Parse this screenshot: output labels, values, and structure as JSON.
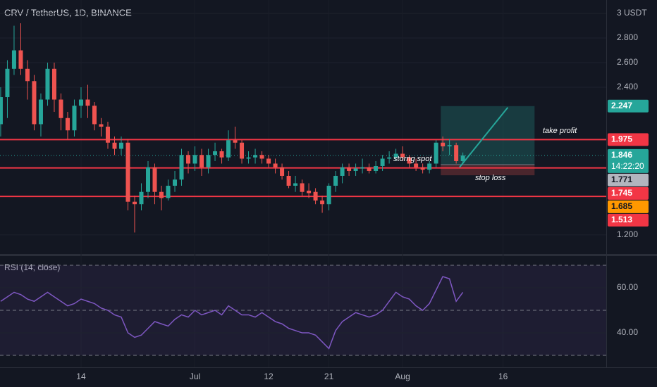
{
  "chart_data": {
    "type": "candlestick",
    "title": "CRV / TetherUS, 1D, BINANCE",
    "up_color": "#26a69a",
    "down_color": "#ef5350",
    "xlim": [
      -0.1,
      90.4
    ],
    "ylim": [
      1.051,
      3.109
    ],
    "yticks": [
      {
        "value": 3,
        "label": "3 USDT"
      },
      {
        "value": 2.8,
        "label": "2.800"
      },
      {
        "value": 2.6,
        "label": "2.600"
      },
      {
        "value": 2.4,
        "label": "2.400"
      },
      {
        "value": 1.2,
        "label": "1.200"
      }
    ],
    "xticks": [
      {
        "value": 12,
        "label": "14"
      },
      {
        "value": 29,
        "label": "Jul"
      },
      {
        "value": 40,
        "label": "12"
      },
      {
        "value": 49,
        "label": "21"
      },
      {
        "value": 60,
        "label": "Aug"
      },
      {
        "value": 75,
        "label": "16"
      }
    ],
    "ohlc": [
      [
        2.1,
        2.4,
        2.0,
        2.32
      ],
      [
        2.32,
        2.62,
        2.15,
        2.55
      ],
      [
        2.55,
        2.9,
        2.5,
        2.7
      ],
      [
        2.7,
        2.92,
        2.5,
        2.55
      ],
      [
        2.55,
        2.62,
        2.3,
        2.45
      ],
      [
        2.45,
        2.5,
        2.05,
        2.1
      ],
      [
        2.1,
        2.35,
        2.0,
        2.3
      ],
      [
        2.3,
        2.6,
        2.25,
        2.55
      ],
      [
        2.55,
        2.6,
        2.2,
        2.3
      ],
      [
        2.3,
        2.35,
        2.05,
        2.15
      ],
      [
        2.15,
        2.2,
        1.98,
        2.05
      ],
      [
        2.05,
        2.3,
        2.0,
        2.25
      ],
      [
        2.25,
        2.4,
        2.15,
        2.3
      ],
      [
        2.3,
        2.42,
        2.15,
        2.25
      ],
      [
        2.25,
        2.28,
        2.05,
        2.1
      ],
      [
        2.1,
        2.15,
        2.0,
        2.08
      ],
      [
        2.08,
        2.12,
        1.9,
        1.95
      ],
      [
        1.95,
        2.0,
        1.85,
        1.9
      ],
      [
        1.9,
        2.0,
        1.85,
        1.95
      ],
      [
        1.95,
        1.98,
        1.4,
        1.47
      ],
      [
        1.47,
        1.52,
        1.22,
        1.45
      ],
      [
        1.45,
        1.62,
        1.4,
        1.55
      ],
      [
        1.55,
        1.8,
        1.5,
        1.75
      ],
      [
        1.75,
        1.78,
        1.45,
        1.55
      ],
      [
        1.55,
        1.6,
        1.4,
        1.5
      ],
      [
        1.5,
        1.65,
        1.48,
        1.6
      ],
      [
        1.6,
        1.72,
        1.55,
        1.65
      ],
      [
        1.65,
        1.9,
        1.6,
        1.85
      ],
      [
        1.85,
        1.88,
        1.7,
        1.78
      ],
      [
        1.78,
        1.92,
        1.72,
        1.85
      ],
      [
        1.85,
        1.9,
        1.68,
        1.75
      ],
      [
        1.75,
        1.9,
        1.7,
        1.85
      ],
      [
        1.85,
        1.95,
        1.8,
        1.88
      ],
      [
        1.88,
        1.9,
        1.78,
        1.83
      ],
      [
        1.83,
        2.05,
        1.8,
        1.97
      ],
      [
        1.97,
        2.08,
        1.9,
        1.95
      ],
      [
        1.95,
        1.97,
        1.78,
        1.82
      ],
      [
        1.82,
        1.88,
        1.78,
        1.83
      ],
      [
        1.83,
        1.9,
        1.78,
        1.85
      ],
      [
        1.85,
        1.88,
        1.78,
        1.82
      ],
      [
        1.82,
        1.85,
        1.75,
        1.78
      ],
      [
        1.78,
        1.82,
        1.7,
        1.75
      ],
      [
        1.75,
        1.78,
        1.65,
        1.68
      ],
      [
        1.68,
        1.72,
        1.58,
        1.6
      ],
      [
        1.6,
        1.68,
        1.55,
        1.62
      ],
      [
        1.62,
        1.65,
        1.52,
        1.55
      ],
      [
        1.56,
        1.62,
        1.5,
        1.54
      ],
      [
        1.55,
        1.58,
        1.45,
        1.48
      ],
      [
        1.48,
        1.52,
        1.38,
        1.45
      ],
      [
        1.45,
        1.62,
        1.4,
        1.6
      ],
      [
        1.6,
        1.72,
        1.55,
        1.68
      ],
      [
        1.68,
        1.78,
        1.62,
        1.75
      ],
      [
        1.75,
        1.78,
        1.68,
        1.72
      ],
      [
        1.72,
        1.78,
        1.68,
        1.74
      ],
      [
        1.74,
        1.82,
        1.7,
        1.75
      ],
      [
        1.75,
        1.78,
        1.7,
        1.72
      ],
      [
        1.72,
        1.8,
        1.7,
        1.76
      ],
      [
        1.76,
        1.85,
        1.72,
        1.82
      ],
      [
        1.82,
        1.88,
        1.78,
        1.83
      ],
      [
        1.83,
        1.9,
        1.8,
        1.86
      ],
      [
        1.86,
        1.92,
        1.8,
        1.83
      ],
      [
        1.83,
        1.85,
        1.75,
        1.78
      ],
      [
        1.78,
        1.82,
        1.72,
        1.75
      ],
      [
        1.75,
        1.78,
        1.7,
        1.73
      ],
      [
        1.73,
        1.8,
        1.7,
        1.78
      ],
      [
        1.78,
        1.97,
        1.75,
        1.95
      ],
      [
        1.95,
        2.0,
        1.88,
        1.92
      ],
      [
        1.92,
        1.98,
        1.85,
        1.93
      ],
      [
        1.93,
        1.95,
        1.78,
        1.8
      ],
      [
        1.8,
        1.87,
        1.78,
        1.846
      ]
    ],
    "levels": [
      {
        "value": 1.975,
        "color": "#f23645"
      },
      {
        "value": 1.745,
        "color": "#f23645"
      },
      {
        "value": 1.513,
        "color": "#f23645"
      }
    ],
    "last_price": 1.846,
    "countdown": "14:22:20",
    "price_tags": [
      {
        "value": 2.247,
        "color": "#26a69a",
        "text_color": "#ffffff"
      },
      {
        "value": 1.975,
        "color": "#f23645",
        "text_color": "#ffffff"
      },
      {
        "value": 1.846,
        "color": "#26a69a",
        "text_color": "#ffffff"
      },
      {
        "value": 1.771,
        "color": "#b2b5be",
        "text_color": "#131722"
      },
      {
        "value": 1.745,
        "color": "#f23645",
        "text_color": "#ffffff"
      },
      {
        "value": 1.685,
        "color": "#ff9800",
        "text_color": "#131722"
      },
      {
        "value": 1.513,
        "color": "#f23645",
        "text_color": "#ffffff"
      }
    ],
    "position": {
      "start": 65.7,
      "end": 79.7,
      "entry": 1.771,
      "target": 2.247,
      "stop": 1.685
    },
    "trend_line": {
      "x": [
        68.5,
        75.7
      ],
      "y": [
        1.75,
        2.236
      ],
      "color": "#26a69a"
    },
    "annotations": {
      "take_profit": "take profit",
      "spot": "storng spot",
      "stop_loss": "stop loss"
    },
    "rsi": {
      "title": "RSI (14, close)",
      "color": "#7e57c2",
      "ylim": [
        24.7,
        74.7
      ],
      "yticks": [
        {
          "value": 60,
          "label": "60.00"
        },
        {
          "value": 40,
          "label": "40.00"
        }
      ],
      "levels": [
        70,
        50,
        30
      ],
      "values": [
        54,
        56,
        58,
        57,
        55,
        54,
        56,
        58,
        56,
        54,
        52,
        53,
        55,
        54,
        53,
        51,
        50,
        48,
        47,
        40,
        38,
        39,
        42,
        45,
        44,
        43,
        46,
        48,
        47,
        50,
        48,
        49,
        50,
        48,
        52,
        50,
        48,
        48,
        47,
        49,
        47,
        45,
        44,
        42,
        41,
        40,
        40,
        39,
        36,
        33,
        41,
        45,
        47,
        49,
        48,
        47,
        48,
        50,
        54,
        58,
        56,
        55,
        52,
        50,
        53,
        59,
        65,
        64,
        54,
        58
      ]
    }
  }
}
